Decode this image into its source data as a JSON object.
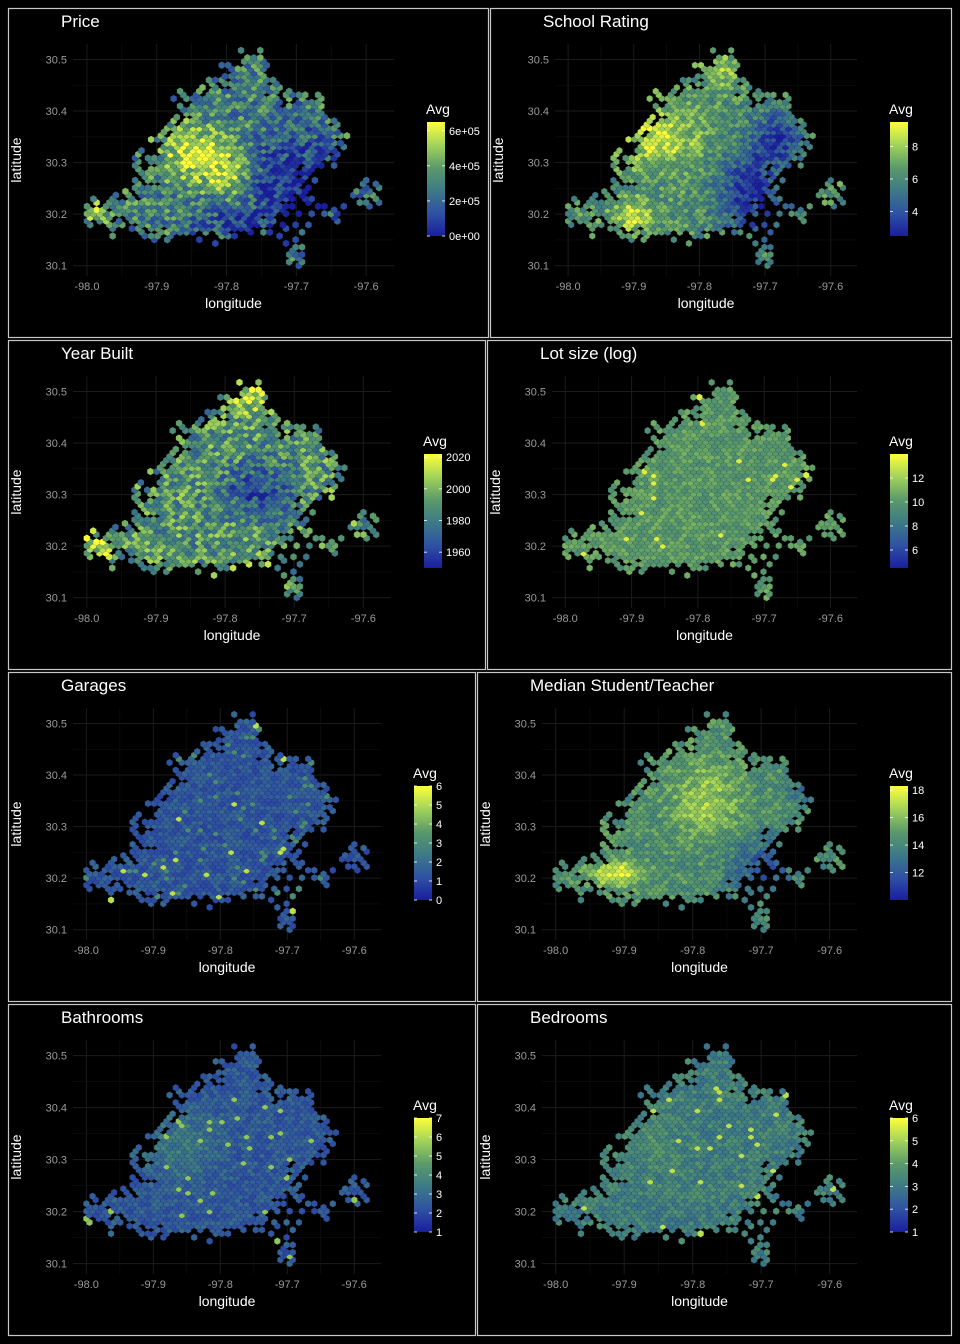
{
  "figure": {
    "background": "#000000",
    "panel_border_color": "#c8c8c8",
    "grid_color": "#1b1b1b",
    "colorscale": [
      "#1a1e9e",
      "#2f52a3",
      "#3d7a86",
      "#5b9a6a",
      "#a2d45a",
      "#ffff3a"
    ]
  },
  "chart_data": [
    {
      "type": "heatmap",
      "geom": "hexbin",
      "title": "Price",
      "xlabel": "longitude",
      "ylabel": "latitude",
      "xticks": [
        "-98.0",
        "-97.9",
        "-97.8",
        "-97.7",
        "-97.6"
      ],
      "yticks": [
        "30.1",
        "30.2",
        "30.3",
        "30.4",
        "30.5"
      ],
      "xlim": [
        -98.02,
        -97.56
      ],
      "ylim": [
        30.08,
        30.53
      ],
      "legend": {
        "title": "Avg",
        "ticks": [
          "0e+00",
          "2e+05",
          "4e+05",
          "6e+05"
        ],
        "range": [
          0,
          650000
        ],
        "tick_values": [
          0,
          200000,
          400000,
          600000
        ]
      },
      "pattern": "price"
    },
    {
      "type": "heatmap",
      "geom": "hexbin",
      "title": "School Rating",
      "xlabel": "longitude",
      "ylabel": "latitude",
      "xticks": [
        "-98.0",
        "-97.9",
        "-97.8",
        "-97.7",
        "-97.6"
      ],
      "yticks": [
        "30.1",
        "30.2",
        "30.3",
        "30.4",
        "30.5"
      ],
      "xlim": [
        -98.02,
        -97.56
      ],
      "ylim": [
        30.08,
        30.53
      ],
      "legend": {
        "title": "Avg",
        "ticks": [
          "4",
          "6",
          "8"
        ],
        "range": [
          2.5,
          9.5
        ],
        "tick_values": [
          4,
          6,
          8
        ]
      },
      "pattern": "school"
    },
    {
      "type": "heatmap",
      "geom": "hexbin",
      "title": "Year Built",
      "xlabel": "longitude",
      "ylabel": "latitude",
      "xticks": [
        "-98.0",
        "-97.9",
        "-97.8",
        "-97.7",
        "-97.6"
      ],
      "yticks": [
        "30.1",
        "30.2",
        "30.3",
        "30.4",
        "30.5"
      ],
      "xlim": [
        -98.02,
        -97.56
      ],
      "ylim": [
        30.08,
        30.53
      ],
      "legend": {
        "title": "Avg",
        "ticks": [
          "1960",
          "1980",
          "2000",
          "2020"
        ],
        "range": [
          1950,
          2022
        ],
        "tick_values": [
          1960,
          1980,
          2000,
          2020
        ]
      },
      "pattern": "year"
    },
    {
      "type": "heatmap",
      "geom": "hexbin",
      "title": "Lot size (log)",
      "xlabel": "longitude",
      "ylabel": "latitude",
      "xticks": [
        "-98.0",
        "-97.9",
        "-97.8",
        "-97.7",
        "-97.6"
      ],
      "yticks": [
        "30.1",
        "30.2",
        "30.3",
        "30.4",
        "30.5"
      ],
      "xlim": [
        -98.02,
        -97.56
      ],
      "ylim": [
        30.08,
        30.53
      ],
      "legend": {
        "title": "Avg",
        "ticks": [
          "6",
          "8",
          "10",
          "12"
        ],
        "range": [
          4.5,
          14
        ],
        "tick_values": [
          6,
          8,
          10,
          12
        ]
      },
      "pattern": "lot"
    },
    {
      "type": "heatmap",
      "geom": "hexbin",
      "title": "Garages",
      "xlabel": "longitude",
      "ylabel": "latitude",
      "xticks": [
        "-98.0",
        "-97.9",
        "-97.8",
        "-97.7",
        "-97.6"
      ],
      "yticks": [
        "30.1",
        "30.2",
        "30.3",
        "30.4",
        "30.5"
      ],
      "xlim": [
        -98.02,
        -97.56
      ],
      "ylim": [
        30.08,
        30.53
      ],
      "legend": {
        "title": "Avg",
        "ticks": [
          "0",
          "1",
          "2",
          "3",
          "4",
          "5",
          "6"
        ],
        "range": [
          0,
          6
        ],
        "tick_values": [
          0,
          1,
          2,
          3,
          4,
          5,
          6
        ]
      },
      "pattern": "garage"
    },
    {
      "type": "heatmap",
      "geom": "hexbin",
      "title": "Median Student/Teacher",
      "xlabel": "longitude",
      "ylabel": "latitude",
      "xticks": [
        "-98.0",
        "-97.9",
        "-97.8",
        "-97.7",
        "-97.6"
      ],
      "yticks": [
        "30.1",
        "30.2",
        "30.3",
        "30.4",
        "30.5"
      ],
      "xlim": [
        -98.02,
        -97.56
      ],
      "ylim": [
        30.08,
        30.53
      ],
      "legend": {
        "title": "Avg",
        "ticks": [
          "12",
          "14",
          "16",
          "18"
        ],
        "range": [
          10,
          18.3
        ],
        "tick_values": [
          12,
          14,
          16,
          18
        ]
      },
      "pattern": "stratio"
    },
    {
      "type": "heatmap",
      "geom": "hexbin",
      "title": "Bathrooms",
      "xlabel": "longitude",
      "ylabel": "latitude",
      "xticks": [
        "-98.0",
        "-97.9",
        "-97.8",
        "-97.7",
        "-97.6"
      ],
      "yticks": [
        "30.1",
        "30.2",
        "30.3",
        "30.4",
        "30.5"
      ],
      "xlim": [
        -98.02,
        -97.56
      ],
      "ylim": [
        30.08,
        30.53
      ],
      "legend": {
        "title": "Avg",
        "ticks": [
          "1",
          "2",
          "3",
          "4",
          "5",
          "6",
          "7"
        ],
        "range": [
          1,
          7
        ],
        "tick_values": [
          1,
          2,
          3,
          4,
          5,
          6,
          7
        ]
      },
      "pattern": "bath"
    },
    {
      "type": "heatmap",
      "geom": "hexbin",
      "title": "Bedrooms",
      "xlabel": "longitude",
      "ylabel": "latitude",
      "xticks": [
        "-98.0",
        "-97.9",
        "-97.8",
        "-97.7",
        "-97.6"
      ],
      "yticks": [
        "30.1",
        "30.2",
        "30.3",
        "30.4",
        "30.5"
      ],
      "xlim": [
        -98.02,
        -97.56
      ],
      "ylim": [
        30.08,
        30.53
      ],
      "legend": {
        "title": "Avg",
        "ticks": [
          "1",
          "2",
          "3",
          "4",
          "5",
          "6"
        ],
        "range": [
          1,
          6
        ],
        "tick_values": [
          1,
          2,
          3,
          4,
          5,
          6
        ]
      },
      "pattern": "bed"
    }
  ]
}
